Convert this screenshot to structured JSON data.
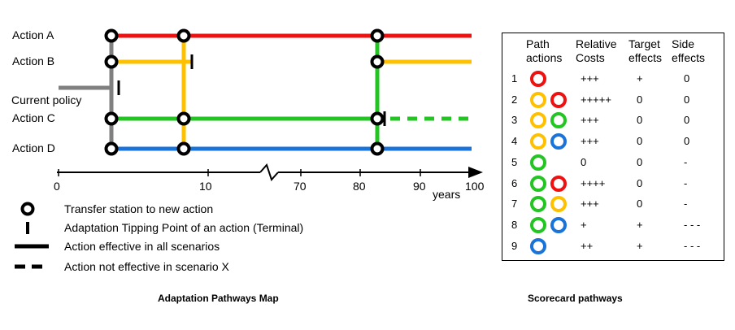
{
  "colors": {
    "action_a": "#ee1111",
    "action_b": "#ffc000",
    "action_c": "#22c522",
    "action_d": "#1a73d9",
    "current_policy": "#808080"
  },
  "map": {
    "actions": [
      {
        "key": "a",
        "label": "Action A",
        "color_key": "action_a"
      },
      {
        "key": "b",
        "label": "Action B",
        "color_key": "action_b"
      },
      {
        "key": "c",
        "label": "Action C",
        "color_key": "action_c"
      },
      {
        "key": "d",
        "label": "Action D",
        "color_key": "action_d"
      }
    ],
    "current_policy_label": "Current policy",
    "axis": {
      "ticks": [
        "0",
        "10",
        "70",
        "80",
        "90",
        "100"
      ],
      "unit_label": "years"
    },
    "legend": [
      {
        "symbol": "transfer-station",
        "text": "Transfer station to new action"
      },
      {
        "symbol": "tipping-point",
        "text": "Adaptation Tipping Point of an action (Terminal)"
      },
      {
        "symbol": "solid-line",
        "text": "Action effective in all scenarios"
      },
      {
        "symbol": "dashed-line",
        "text": "Action not effective in scenario X"
      }
    ],
    "caption": "Adaptation Pathways Map"
  },
  "scorecard": {
    "caption": "Scorecard pathways",
    "headers": {
      "path": "Path actions",
      "costs": "Relative Costs",
      "target": "Target effects",
      "side": "Side effects"
    },
    "rows": [
      {
        "num": "1",
        "actions": [
          "action_a"
        ],
        "costs": "+++",
        "target": "+",
        "side": "0"
      },
      {
        "num": "2",
        "actions": [
          "action_b",
          "action_a"
        ],
        "costs": "+++++",
        "target": "0",
        "side": "0"
      },
      {
        "num": "3",
        "actions": [
          "action_b",
          "action_c"
        ],
        "costs": "+++",
        "target": "0",
        "side": "0"
      },
      {
        "num": "4",
        "actions": [
          "action_b",
          "action_d"
        ],
        "costs": "+++",
        "target": "0",
        "side": "0"
      },
      {
        "num": "5",
        "actions": [
          "action_c"
        ],
        "costs": "0",
        "target": "0",
        "side": "-"
      },
      {
        "num": "6",
        "actions": [
          "action_c",
          "action_a"
        ],
        "costs": "++++",
        "target": "0",
        "side": "-"
      },
      {
        "num": "7",
        "actions": [
          "action_c",
          "action_b"
        ],
        "costs": "+++",
        "target": "0",
        "side": "-"
      },
      {
        "num": "8",
        "actions": [
          "action_c",
          "action_d"
        ],
        "costs": "+",
        "target": "+",
        "side": "- - -"
      },
      {
        "num": "9",
        "actions": [
          "action_d"
        ],
        "costs": "++",
        "target": "+",
        "side": "- - -"
      }
    ]
  }
}
